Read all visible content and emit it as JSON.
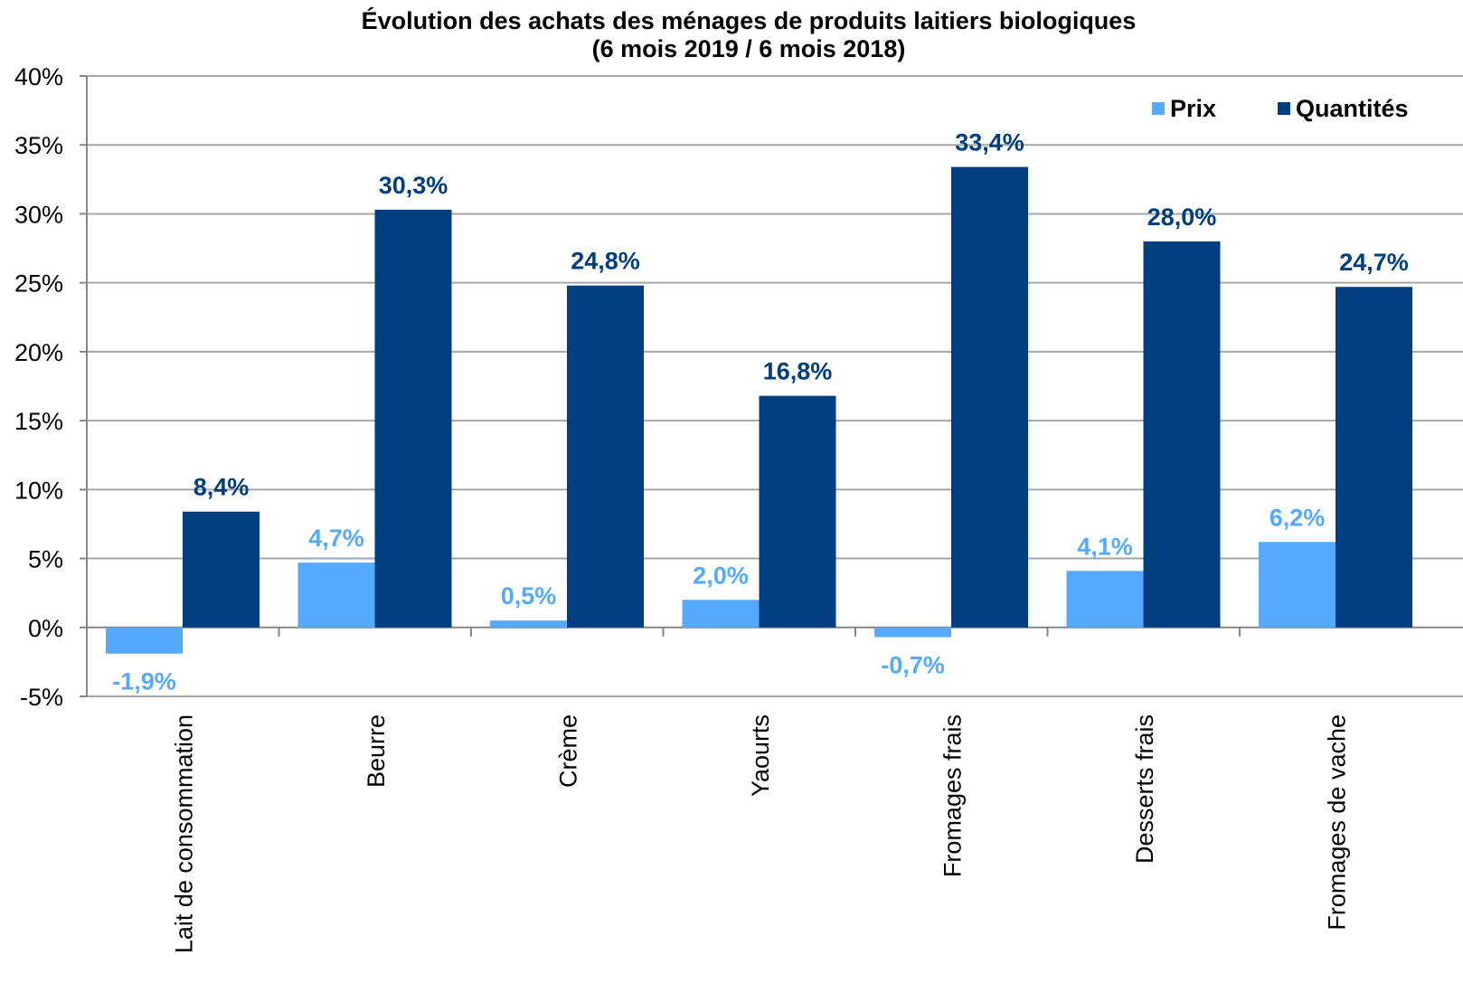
{
  "chart_data": {
    "type": "bar",
    "title": "Évolution des achats des ménages de produits laitiers biologiques",
    "subtitle": "(6 mois 2019 / 6 mois 2018)",
    "categories": [
      "Lait de consommation",
      "Beurre",
      "Crème",
      "Yaourts",
      "Fromages frais",
      "Desserts frais",
      "Fromages de vache"
    ],
    "series": [
      {
        "name": "Prix",
        "color": "#55aaff",
        "values": [
          -1.9,
          4.7,
          0.5,
          2.0,
          -0.7,
          4.1,
          6.2
        ],
        "labels": [
          "-1,9%",
          "4,7%",
          "0,5%",
          "2,0%",
          "-0,7%",
          "4,1%",
          "6,2%"
        ]
      },
      {
        "name": "Quantités",
        "color": "#003f7f",
        "values": [
          8.4,
          30.3,
          24.8,
          16.8,
          33.4,
          28.0,
          24.7
        ],
        "labels": [
          "8,4%",
          "30,3%",
          "24,8%",
          "16,8%",
          "33,4%",
          "28,0%",
          "24,7%"
        ]
      }
    ],
    "ylim": [
      -5,
      40
    ],
    "yticks": [
      40,
      35,
      30,
      25,
      20,
      15,
      10,
      5,
      0,
      -5
    ],
    "ytick_labels": [
      "40%",
      "35%",
      "30%",
      "25%",
      "20%",
      "15%",
      "10%",
      "5%",
      "0%",
      "-5%"
    ],
    "xlabel": "",
    "ylabel": "",
    "grid": true,
    "legend_position": "top-right"
  }
}
